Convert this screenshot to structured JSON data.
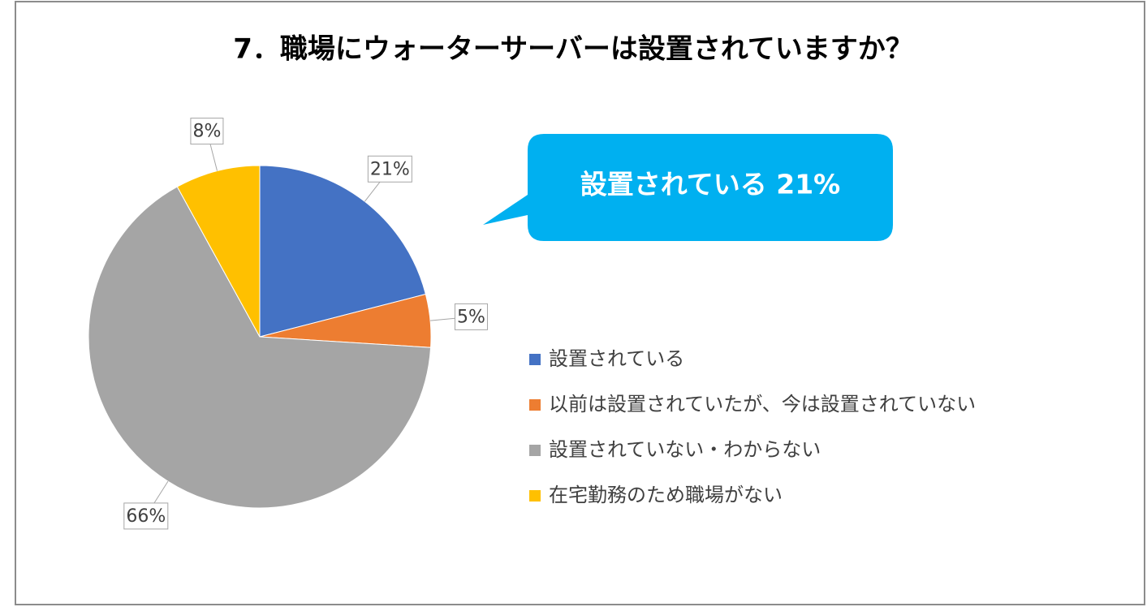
{
  "chart_data": {
    "type": "pie",
    "title": "7．職場にウォーターサーバーは設置されていますか？",
    "annotation": "設置されている 21%",
    "categories": [
      "設置されている",
      "以前は設置されていたが、今は設置されていない",
      "設置されていない・わからない",
      "在宅勤務のため職場がない"
    ],
    "values": [
      21,
      5,
      66,
      8
    ],
    "value_labels": [
      "21%",
      "5%",
      "66%",
      "8%"
    ],
    "colors": [
      "#4472c4",
      "#ed7d31",
      "#a5a5a5",
      "#ffc000"
    ],
    "legend": "right"
  }
}
